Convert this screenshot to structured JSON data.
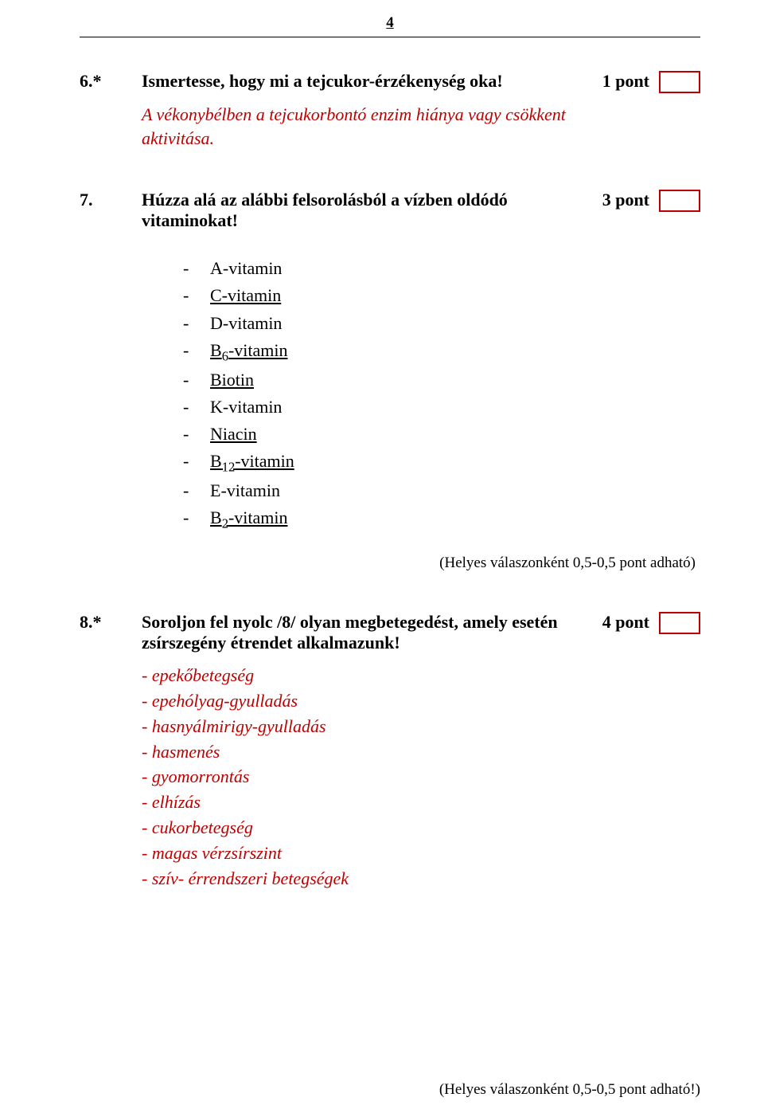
{
  "page_number": "4",
  "q6": {
    "num": "6.*",
    "text": "Ismertesse, hogy mi a tejcukor-érzékenység oka!",
    "points": "1 pont",
    "answer": "A vékonybélben a tejcukorbontó enzim hiánya vagy csökkent aktivitása."
  },
  "q7": {
    "num": "7.",
    "text": "Húzza alá az alábbi felsorolásból a vízben oldódó vitaminokat!",
    "points": "3 pont",
    "items": [
      {
        "label": "A-vitamin",
        "underline": false
      },
      {
        "label": "C-vitamin",
        "underline": true
      },
      {
        "label": "D-vitamin",
        "underline": false
      },
      {
        "label_html": "B<sub>6</sub>-vitamin",
        "underline": true
      },
      {
        "label": "Biotin",
        "underline": true
      },
      {
        "label": "K-vitamin",
        "underline": false
      },
      {
        "label": "Niacin",
        "underline": true
      },
      {
        "label_html": "B<sub>12</sub>-vitamin",
        "underline": true
      },
      {
        "label": "E-vitamin",
        "underline": false
      },
      {
        "label_html": "B<sub>2</sub>-vitamin",
        "underline": true
      }
    ],
    "scoring": "(Helyes válaszonként 0,5-0,5 pont adható)"
  },
  "q8": {
    "num": "8.*",
    "text": "Soroljon fel nyolc /8/ olyan megbetegedést, amely esetén zsírszegény étrendet alkalmazunk!",
    "points": "4 pont",
    "items": [
      "- epekőbetegség",
      "- epehólyag-gyulladás",
      "- hasnyálmirigy-gyulladás",
      "- hasmenés",
      "- gyomorrontás",
      "- elhízás",
      "- cukorbetegség",
      "- magas vérzsírszint",
      "- szív- érrendszeri betegségek"
    ]
  },
  "scoring_bottom": "(Helyes válaszonként 0,5-0,5 pont adható!)",
  "colors": {
    "answer": "#c00000",
    "box_border": "#c00000"
  }
}
